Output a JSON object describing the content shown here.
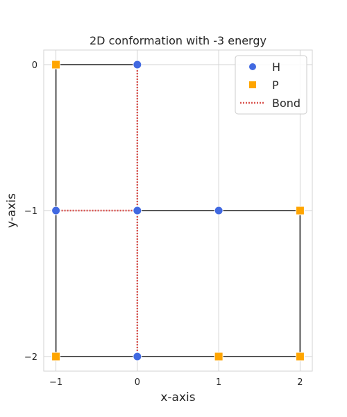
{
  "chart_data": {
    "type": "scatter",
    "title": "2D conformation with -3 energy",
    "xlabel": "x-axis",
    "ylabel": "y-axis",
    "xlim": [
      -1.15,
      2.15
    ],
    "ylim": [
      -2.1,
      0.1
    ],
    "xticks": [
      -1,
      0,
      1,
      2
    ],
    "xtick_labels": [
      "−1",
      "0",
      "1",
      "2"
    ],
    "yticks": [
      0,
      -1,
      -2
    ],
    "ytick_labels": [
      "0",
      "−1",
      "−2"
    ],
    "grid": true,
    "legend_position": "top-right",
    "chain": [
      [
        0,
        0
      ],
      [
        -1,
        0
      ],
      [
        -1,
        -1
      ],
      [
        -1,
        -2
      ],
      [
        0,
        -2
      ],
      [
        1,
        -2
      ],
      [
        2,
        -2
      ],
      [
        2,
        -1
      ],
      [
        1,
        -1
      ],
      [
        0,
        -1
      ]
    ],
    "series": [
      {
        "name": "H",
        "marker": "circle",
        "color": "#4169E1",
        "points": [
          [
            0,
            0
          ],
          [
            -1,
            -1
          ],
          [
            0,
            -2
          ],
          [
            1,
            -1
          ],
          [
            0,
            -1
          ]
        ]
      },
      {
        "name": "P",
        "marker": "square",
        "color": "#FFA500",
        "points": [
          [
            -1,
            0
          ],
          [
            -1,
            -2
          ],
          [
            1,
            -2
          ],
          [
            2,
            -2
          ],
          [
            2,
            -1
          ]
        ]
      }
    ],
    "bonds": {
      "name": "Bond",
      "color": "#D9534F",
      "style": "dotted",
      "segments": [
        [
          [
            0,
            0
          ],
          [
            0,
            -1
          ]
        ],
        [
          [
            -1,
            -1
          ],
          [
            0,
            -1
          ]
        ],
        [
          [
            0,
            -2
          ],
          [
            0,
            -1
          ]
        ]
      ]
    },
    "chain_color": "#404040",
    "grid_color": "#d3d3d3"
  }
}
